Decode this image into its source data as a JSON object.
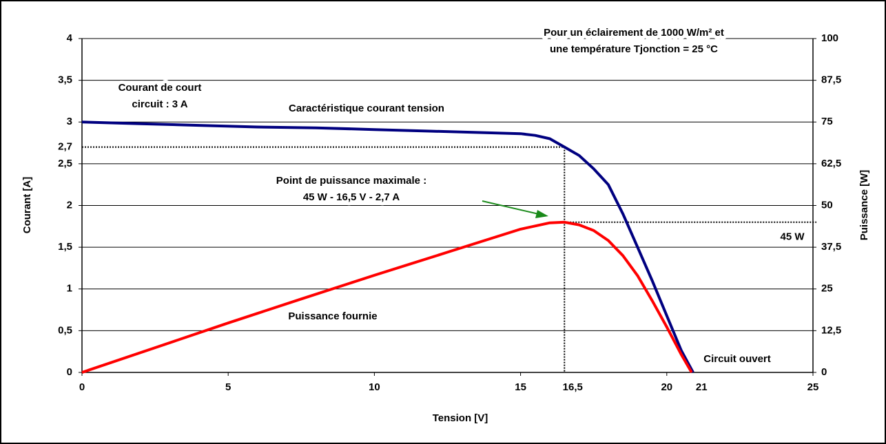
{
  "chart_data": {
    "type": "line",
    "title": [
      "Pour un éclairement de 1000 W/m² et",
      "une température Tjonction = 25 °C"
    ],
    "x_label": "Tension [V]",
    "y_label": "Courant [A]",
    "y2_label": "Puissance [W]",
    "xlim": [
      0,
      25
    ],
    "xticks": [
      0,
      5,
      10,
      15,
      20,
      25
    ],
    "ylim": [
      0,
      4
    ],
    "yticks": [
      0,
      {
        "value": 0.5,
        "label": "0,5"
      },
      1,
      {
        "value": 1.5,
        "label": "1,5"
      },
      2,
      {
        "value": 2.5,
        "label": "2,5"
      },
      3,
      {
        "value": 3.5,
        "label": "3,5"
      },
      4
    ],
    "y2lim": [
      0,
      100
    ],
    "y2ticks": [
      0,
      {
        "value": 12.5,
        "label": "12,5"
      },
      25,
      {
        "value": 37.5,
        "label": "37,5"
      },
      50,
      {
        "value": 62.5,
        "label": "62,5"
      },
      75,
      {
        "value": 87.5,
        "label": "87,5"
      },
      100
    ],
    "grid": true,
    "series": [
      {
        "name": "Caractéristique courant tension",
        "color": "#000080",
        "axis": "y",
        "x": [
          0,
          2,
          4,
          6,
          8,
          10,
          12,
          14,
          15,
          15.5,
          16,
          16.5,
          17,
          17.5,
          18,
          18.5,
          19,
          19.5,
          20,
          20.5,
          20.9
        ],
        "values": [
          3.0,
          2.98,
          2.96,
          2.94,
          2.93,
          2.91,
          2.89,
          2.87,
          2.86,
          2.84,
          2.8,
          2.7,
          2.6,
          2.44,
          2.25,
          1.9,
          1.5,
          1.1,
          0.68,
          0.26,
          0
        ]
      },
      {
        "name": "Puissance fournie",
        "color": "#ff0000",
        "axis": "y2",
        "x": [
          0,
          2.5,
          5,
          7.5,
          10,
          12.5,
          15,
          16,
          16.5,
          17,
          17.5,
          18,
          18.5,
          19,
          19.5,
          20,
          20.5,
          20.85
        ],
        "values": [
          0,
          7.4,
          14.8,
          22,
          29.1,
          36,
          42.9,
          44.8,
          45,
          44.2,
          42.5,
          39.5,
          35,
          29,
          21.5,
          13.6,
          5.3,
          0
        ]
      }
    ],
    "mpp": {
      "x": {
        "value": 16.5,
        "label": "16,5"
      },
      "current": {
        "value": 2.7,
        "label": "2,7"
      },
      "power": {
        "value": 45,
        "label": "45 W"
      }
    },
    "voc": 21,
    "annotations": [
      [
        "Courant de court",
        "circuit : 3 A"
      ],
      [
        "Point de puissance maximale :",
        "45 W - 16,5 V - 2,7 A"
      ],
      [
        "Circuit ouvert"
      ]
    ]
  }
}
